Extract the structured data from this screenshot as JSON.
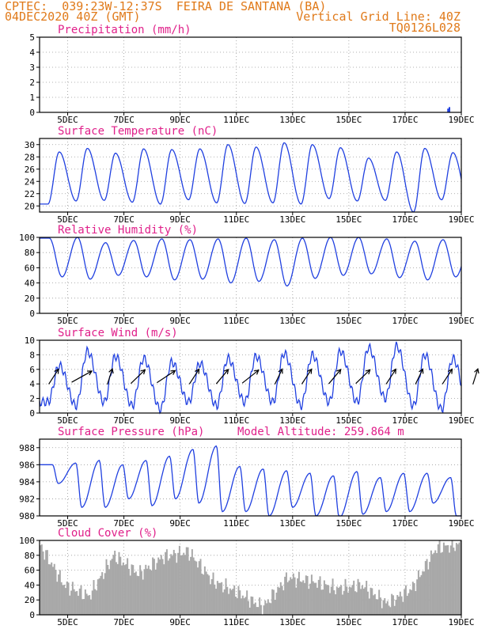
{
  "header": {
    "line1_left": "CPTEC:  039:23W-12:37S  FEIRA DE SANTANA (BA)",
    "line2_left": "04DEC2020 40Z (GMT)",
    "line2_right": "Vertical Grid Line: 40Z",
    "line3_right": "TQ0126L028"
  },
  "colors": {
    "header": "#e07a1a",
    "title": "#e0208a",
    "series": "#2040e0",
    "cloud": "#a8a8a8",
    "grid": "#999999"
  },
  "chart_data": [
    {
      "type": "bar",
      "title": "Precipitation (mm/h)",
      "ylim": [
        0,
        5
      ],
      "yticks": [
        0,
        1,
        2,
        3,
        4,
        5
      ],
      "xticks": [
        "5DEC",
        "7DEC",
        "9DEC",
        "11DEC",
        "13DEC",
        "15DEC",
        "17DEC",
        "19DEC"
      ],
      "series": [
        {
          "x": [
            4.0,
            14.5,
            14.55
          ],
          "values": [
            0.02,
            0.25,
            0.35
          ]
        }
      ]
    },
    {
      "type": "line",
      "title": "Surface Temperature (nC)",
      "ylim": [
        19,
        31
      ],
      "yticks": [
        20,
        22,
        24,
        26,
        28,
        30
      ],
      "xticks": [
        "5DEC",
        "7DEC",
        "9DEC",
        "11DEC",
        "13DEC",
        "15DEC",
        "17DEC",
        "19DEC"
      ],
      "daily_max": [
        28.8,
        29.4,
        28.6,
        29.3,
        29.2,
        29.3,
        30.0,
        29.6,
        30.3,
        30.0,
        29.5,
        27.8,
        28.8,
        29.4,
        28.7,
        29.3
      ],
      "daily_min": [
        20.3,
        20.8,
        20.9,
        20.6,
        20.3,
        21.0,
        20.5,
        20.4,
        20.5,
        20.3,
        21.2,
        20.8,
        20.9,
        19.0,
        21.0,
        20.0
      ]
    },
    {
      "type": "line",
      "title": "Relative Humidity (%)",
      "ylim": [
        0,
        100
      ],
      "yticks": [
        0,
        20,
        40,
        60,
        80,
        100
      ],
      "xticks": [
        "5DEC",
        "7DEC",
        "9DEC",
        "11DEC",
        "13DEC",
        "15DEC",
        "17DEC",
        "19DEC"
      ],
      "daily_max": [
        99,
        100,
        93,
        96,
        98,
        97,
        98,
        99,
        97,
        99,
        100,
        100,
        98,
        95,
        97,
        95
      ],
      "daily_min": [
        48,
        45,
        50,
        48,
        44,
        45,
        40,
        42,
        36,
        46,
        50,
        52,
        47,
        44,
        48,
        43
      ]
    },
    {
      "type": "line",
      "title": "Surface Wind (m/s)",
      "ylim": [
        0,
        10
      ],
      "yticks": [
        0,
        2,
        4,
        6,
        8,
        10
      ],
      "xticks": [
        "5DEC",
        "7DEC",
        "9DEC",
        "11DEC",
        "13DEC",
        "15DEC",
        "17DEC",
        "19DEC"
      ],
      "speed_daily_max": [
        6.5,
        8.5,
        7.8,
        7.5,
        7.0,
        6.8,
        7.5,
        7.8,
        8.2,
        8.0,
        8.5,
        9.0,
        9.2,
        8.0,
        7.5,
        8.5
      ],
      "speed_daily_min": [
        1.5,
        1.0,
        1.5,
        1.0,
        0.5,
        1.5,
        1.0,
        1.5,
        1.5,
        1.0,
        1.5,
        1.5,
        2.0,
        1.0,
        0.5,
        0.3
      ],
      "arrow_direction_deg": [
        250,
        225,
        260,
        240,
        230,
        250,
        245,
        235,
        255,
        250,
        245,
        240,
        250,
        255,
        250,
        260
      ]
    },
    {
      "type": "line",
      "title": "Surface Pressure (hPa)",
      "annotation": "Model Altitude: 259.864 m",
      "ylim": [
        980,
        989
      ],
      "yticks": [
        980,
        982,
        984,
        986,
        988
      ],
      "xticks": [
        "5DEC",
        "7DEC",
        "9DEC",
        "11DEC",
        "13DEC",
        "15DEC",
        "17DEC",
        "19DEC"
      ],
      "daily_max": [
        986.0,
        986.2,
        986.5,
        986.0,
        986.5,
        987.0,
        987.8,
        988.2,
        985.8,
        985.5,
        985.3,
        985.0,
        984.7,
        985.2,
        984.5,
        985.0,
        985.0,
        984.5
      ],
      "daily_min": [
        983.8,
        981.0,
        981.0,
        982.0,
        981.2,
        982.0,
        981.5,
        980.5,
        980.5,
        980.0,
        981.0,
        980.0,
        979.8,
        980.2,
        980.5,
        980.5,
        981.5,
        980.0
      ]
    },
    {
      "type": "area",
      "title": "Cloud Cover (%)",
      "ylim": [
        0,
        100
      ],
      "yticks": [
        0,
        20,
        40,
        60,
        80,
        100
      ],
      "xticks": [
        "5DEC",
        "7DEC",
        "9DEC",
        "11DEC",
        "13DEC",
        "15DEC",
        "17DEC",
        "19DEC"
      ],
      "daily_profile": [
        95,
        40,
        25,
        80,
        55,
        78,
        85,
        45,
        30,
        10,
        50,
        45,
        35,
        40,
        15,
        35,
        90,
        95
      ]
    }
  ]
}
